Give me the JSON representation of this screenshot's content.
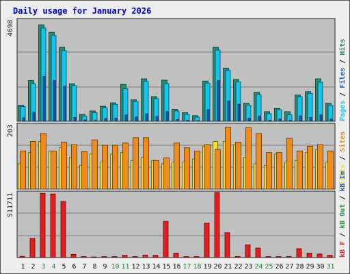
{
  "title": "Daily usage for January 2026",
  "colors": {
    "hits": "#2a8a72",
    "files": "#12c6ef",
    "pages": "#1560c8",
    "sites": "#f08a18",
    "visits": "#f2e020",
    "kb_in": "#1060c8",
    "kb_out": "#2a9a38",
    "kb_f": "#e81c1c",
    "weekend_day": "#1a8a3a",
    "axis_label": "#111111"
  },
  "chart_data": [
    {
      "type": "bar",
      "name": "hits-files-pages",
      "ymax_label": "4698",
      "ymax": 4698,
      "right_label_parts": [
        {
          "text": "Pages",
          "color_key": "files"
        },
        {
          "text": " / ",
          "color_key": "axis_label"
        },
        {
          "text": "Files",
          "color_key": "pages"
        },
        {
          "text": " / ",
          "color_key": "axis_label"
        },
        {
          "text": "Hits",
          "color_key": "hits"
        }
      ],
      "categories": [
        "1",
        "2",
        "3",
        "4",
        "5",
        "6",
        "7",
        "8",
        "9",
        "10",
        "11",
        "12",
        "13",
        "14",
        "15",
        "16",
        "17",
        "18",
        "19",
        "20",
        "21",
        "22",
        "23",
        "24",
        "25",
        "26",
        "27",
        "28",
        "29",
        "30",
        "31"
      ],
      "series": [
        {
          "name": "Hits",
          "values": [
            750,
            1900,
            4500,
            4150,
            3450,
            1750,
            320,
            480,
            700,
            860,
            1720,
            1000,
            1980,
            1150,
            1920,
            560,
            400,
            260,
            1880,
            3450,
            2480,
            1950,
            840,
            1350,
            450,
            600,
            450,
            1220,
            1380,
            1980,
            840
          ]
        },
        {
          "name": "Files",
          "values": [
            690,
            1760,
            4350,
            4000,
            3300,
            1660,
            240,
            400,
            630,
            790,
            1520,
            920,
            1860,
            1060,
            1760,
            480,
            320,
            190,
            1780,
            3320,
            2370,
            1830,
            750,
            1240,
            350,
            540,
            300,
            1140,
            1300,
            1820,
            750
          ]
        },
        {
          "name": "Pages",
          "values": [
            160,
            420,
            2100,
            1900,
            1650,
            180,
            60,
            40,
            130,
            150,
            300,
            200,
            350,
            230,
            450,
            80,
            50,
            30,
            550,
            1900,
            950,
            800,
            150,
            250,
            50,
            100,
            40,
            250,
            180,
            300,
            100
          ]
        }
      ]
    },
    {
      "type": "bar",
      "name": "visits-sites",
      "ymax_label": "203",
      "ymax": 203,
      "right_label_parts": [
        {
          "text": "Visits",
          "color_key": "visits"
        },
        {
          "text": " / ",
          "color_key": "axis_label"
        },
        {
          "text": "Sites",
          "color_key": "sites"
        }
      ],
      "categories": [
        "1",
        "2",
        "3",
        "4",
        "5",
        "6",
        "7",
        "8",
        "9",
        "10",
        "11",
        "12",
        "13",
        "14",
        "15",
        "16",
        "17",
        "18",
        "19",
        "20",
        "21",
        "22",
        "23",
        "24",
        "25",
        "26",
        "27",
        "28",
        "29",
        "30",
        "31"
      ],
      "series": [
        {
          "name": "Visits",
          "values": [
            80,
            115,
            150,
            120,
            130,
            100,
            75,
            110,
            85,
            110,
            115,
            90,
            100,
            90,
            80,
            85,
            85,
            95,
            135,
            150,
            150,
            140,
            100,
            80,
            75,
            110,
            85,
            90,
            115,
            125,
            85
          ]
        },
        {
          "name": "Sites",
          "values": [
            120,
            150,
            175,
            120,
            148,
            140,
            118,
            155,
            138,
            138,
            145,
            162,
            162,
            90,
            98,
            145,
            130,
            120,
            140,
            125,
            195,
            148,
            193,
            175,
            115,
            115,
            160,
            120,
            135,
            140,
            120
          ]
        }
      ]
    },
    {
      "type": "bar",
      "name": "kbytes",
      "ymax_label": "511711",
      "ymax": 511711,
      "right_label_parts": [
        {
          "text": "kB F",
          "color_key": "kb_f"
        },
        {
          "text": " / ",
          "color_key": "axis_label"
        },
        {
          "text": "kB Out",
          "color_key": "kb_out"
        },
        {
          "text": " / ",
          "color_key": "axis_label"
        },
        {
          "text": "kB In",
          "color_key": "kb_in"
        }
      ],
      "categories": [
        "1",
        "2",
        "3",
        "4",
        "5",
        "6",
        "7",
        "8",
        "9",
        "10",
        "11",
        "12",
        "13",
        "14",
        "15",
        "16",
        "17",
        "18",
        "19",
        "20",
        "21",
        "22",
        "23",
        "24",
        "25",
        "26",
        "27",
        "28",
        "29",
        "30",
        "31"
      ],
      "series": [
        {
          "name": "kB F",
          "values": [
            10000,
            150000,
            505000,
            500000,
            440000,
            25000,
            8000,
            5000,
            8000,
            8000,
            18000,
            8000,
            20000,
            18000,
            285000,
            35000,
            8000,
            8000,
            270000,
            511711,
            195000,
            8000,
            100000,
            75000,
            8000,
            8000,
            8000,
            70000,
            35000,
            28000,
            18000
          ]
        },
        {
          "name": "kB In",
          "values": [
            0,
            0,
            0,
            0,
            0,
            0,
            0,
            0,
            0,
            0,
            0,
            0,
            0,
            0,
            0,
            0,
            0,
            0,
            0,
            0,
            0,
            0,
            0,
            0,
            0,
            0,
            0,
            0,
            0,
            0,
            0
          ]
        },
        {
          "name": "kB Out",
          "values": [
            0,
            0,
            0,
            0,
            0,
            0,
            0,
            0,
            0,
            0,
            0,
            0,
            0,
            0,
            0,
            0,
            0,
            0,
            0,
            0,
            0,
            0,
            0,
            0,
            0,
            0,
            0,
            0,
            0,
            0,
            0
          ]
        }
      ],
      "weekend_days": [
        "3",
        "4",
        "10",
        "11",
        "17",
        "18",
        "24",
        "25",
        "31"
      ]
    }
  ]
}
